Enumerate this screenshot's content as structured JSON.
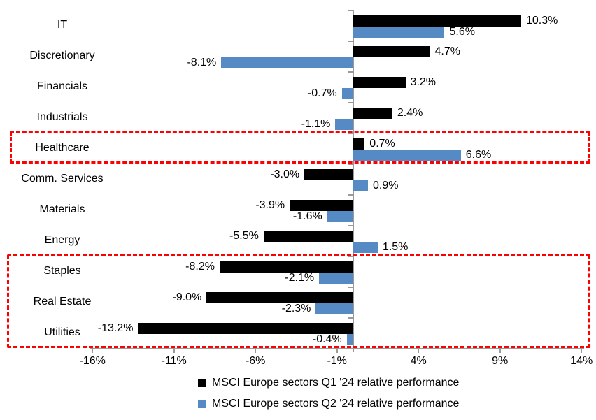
{
  "chart_data": {
    "type": "bar",
    "orientation": "horizontal",
    "title": "",
    "categories": [
      "IT",
      "Discretionary",
      "Financials",
      "Industrials",
      "Healthcare",
      "Comm. Services",
      "Materials",
      "Energy",
      "Staples",
      "Real Estate",
      "Utilities"
    ],
    "series": [
      {
        "name": "MSCI Europe sectors Q1 '24 relative performance",
        "color": "#000000",
        "values": [
          10.3,
          4.7,
          3.2,
          2.4,
          0.7,
          -3.0,
          -3.9,
          -5.5,
          -8.2,
          -9.0,
          -13.2
        ],
        "labels": [
          "10.3%",
          "4.7%",
          "3.2%",
          "2.4%",
          "0.7%",
          "-3.0%",
          "-3.9%",
          "-5.5%",
          "-8.2%",
          "-9.0%",
          "-13.2%"
        ]
      },
      {
        "name": "MSCI Europe sectors Q2 '24 relative performance",
        "color": "#558AC4",
        "values": [
          5.6,
          -8.1,
          -0.7,
          -1.1,
          6.6,
          0.9,
          -1.6,
          1.5,
          -2.1,
          -2.3,
          -0.4
        ],
        "labels": [
          "5.6%",
          "-8.1%",
          "-0.7%",
          "-1.1%",
          "6.6%",
          "0.9%",
          "-1.6%",
          "1.5%",
          "-2.1%",
          "-2.3%",
          "-0.4%"
        ]
      }
    ],
    "x_axis": {
      "ticks": [
        "-16%",
        "-11%",
        "-6%",
        "-1%",
        "4%",
        "9%",
        "14%"
      ],
      "tick_values": [
        -16,
        -11,
        -6,
        -1,
        4,
        9,
        14
      ],
      "min": -16,
      "max": 14,
      "axis_color": "#9a9a9a"
    },
    "grid": "off",
    "legend_position": "bottom",
    "legend": [
      "MSCI Europe sectors Q1 '24 relative performance",
      "MSCI Europe sectors Q2 '24 relative performance"
    ],
    "highlights": [
      {
        "categories": [
          "Healthcare"
        ],
        "color": "#FF0000"
      },
      {
        "categories": [
          "Staples",
          "Real Estate",
          "Utilities"
        ],
        "color": "#FF0000"
      }
    ]
  }
}
